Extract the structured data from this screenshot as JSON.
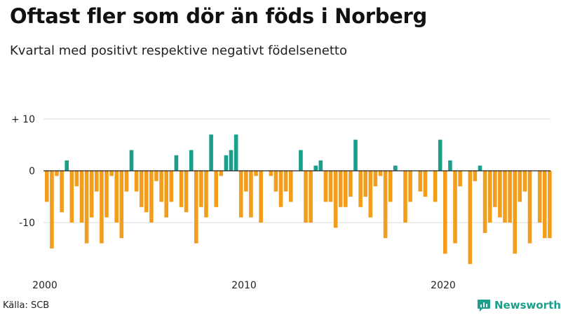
{
  "header": {
    "title": "Oftast fler som dör än föds i Norberg",
    "subtitle": "Kvartal med positivt respektive negativt födelsenetto"
  },
  "footer": {
    "source": "Källa: SCB",
    "brand": "Newsworthy"
  },
  "colors": {
    "positive": "#1b9e8a",
    "negative": "#f29e1c",
    "grid": "#dcdcdc",
    "zero_line": "#222222",
    "brand": "#1b9e8a"
  },
  "chart_data": {
    "type": "bar",
    "title": "Oftast fler som dör än föds i Norberg",
    "subtitle": "Kvartal med positivt respektive negativt födelsenetto",
    "xlabel": "",
    "ylabel": "",
    "ylim": [
      -18,
      10
    ],
    "y_ticks": [
      {
        "value": 10,
        "label": "+ 10"
      },
      {
        "value": 0,
        "label": "0"
      },
      {
        "value": -10,
        "label": "-10"
      }
    ],
    "x_ticks": [
      {
        "year": 2000,
        "label": "2000"
      },
      {
        "year": 2010,
        "label": "2010"
      },
      {
        "year": 2020,
        "label": "2020"
      }
    ],
    "start_year": 2000,
    "start_quarter": 1,
    "periods_per_year": 4,
    "categories": [
      "2000Q1",
      "2000Q2",
      "2000Q3",
      "2000Q4",
      "2001Q1",
      "2001Q2",
      "2001Q3",
      "2001Q4",
      "2002Q1",
      "2002Q2",
      "2002Q3",
      "2002Q4",
      "2003Q1",
      "2003Q2",
      "2003Q3",
      "2003Q4",
      "2004Q1",
      "2004Q2",
      "2004Q3",
      "2004Q4",
      "2005Q1",
      "2005Q2",
      "2005Q3",
      "2005Q4",
      "2006Q1",
      "2006Q2",
      "2006Q3",
      "2006Q4",
      "2007Q1",
      "2007Q2",
      "2007Q3",
      "2007Q4",
      "2008Q1",
      "2008Q2",
      "2008Q3",
      "2008Q4",
      "2009Q1",
      "2009Q2",
      "2009Q3",
      "2009Q4",
      "2010Q1",
      "2010Q2",
      "2010Q3",
      "2010Q4",
      "2011Q1",
      "2011Q2",
      "2011Q3",
      "2011Q4",
      "2012Q1",
      "2012Q2",
      "2012Q3",
      "2012Q4",
      "2013Q1",
      "2013Q2",
      "2013Q3",
      "2013Q4",
      "2014Q1",
      "2014Q2",
      "2014Q3",
      "2014Q4",
      "2015Q1",
      "2015Q2",
      "2015Q3",
      "2015Q4",
      "2016Q1",
      "2016Q2",
      "2016Q3",
      "2016Q4",
      "2017Q1",
      "2017Q2",
      "2017Q3",
      "2017Q4",
      "2018Q1",
      "2018Q2",
      "2018Q3",
      "2018Q4",
      "2019Q1",
      "2019Q2",
      "2019Q3",
      "2019Q4",
      "2020Q1",
      "2020Q2",
      "2020Q3",
      "2020Q4",
      "2021Q1",
      "2021Q2",
      "2021Q3",
      "2021Q4",
      "2022Q1",
      "2022Q2",
      "2022Q3",
      "2022Q4",
      "2023Q1",
      "2023Q2",
      "2023Q3",
      "2023Q4",
      "2024Q1",
      "2024Q2",
      "2024Q3",
      "2024Q4",
      "2025Q1",
      "2025Q2",
      "2025Q3"
    ],
    "values": [
      -6,
      -15,
      -1,
      -8,
      2,
      -10,
      -3,
      -10,
      -14,
      -9,
      -4,
      -14,
      -9,
      -1,
      -10,
      -13,
      -4,
      4,
      -4,
      -7,
      -8,
      -10,
      -2,
      -6,
      -9,
      -6,
      3,
      -7,
      -8,
      4,
      -14,
      -7,
      -9,
      7,
      -7,
      -1,
      3,
      4,
      7,
      -9,
      -4,
      -9,
      -1,
      -10,
      0,
      -1,
      -4,
      -7,
      -4,
      -6,
      0,
      4,
      -10,
      -10,
      1,
      2,
      -6,
      -6,
      -11,
      -7,
      -7,
      -5,
      6,
      -7,
      -5,
      -9,
      -3,
      -1,
      -13,
      -6,
      1,
      0,
      -10,
      -6,
      0,
      -4,
      -5,
      0,
      -6,
      6,
      -16,
      2,
      -14,
      -3,
      0,
      -18,
      -2,
      1,
      -12,
      -10,
      -7,
      -9,
      -10,
      -10,
      -16,
      -6,
      -4,
      -14,
      0,
      -10,
      -13,
      -13,
      0
    ]
  }
}
